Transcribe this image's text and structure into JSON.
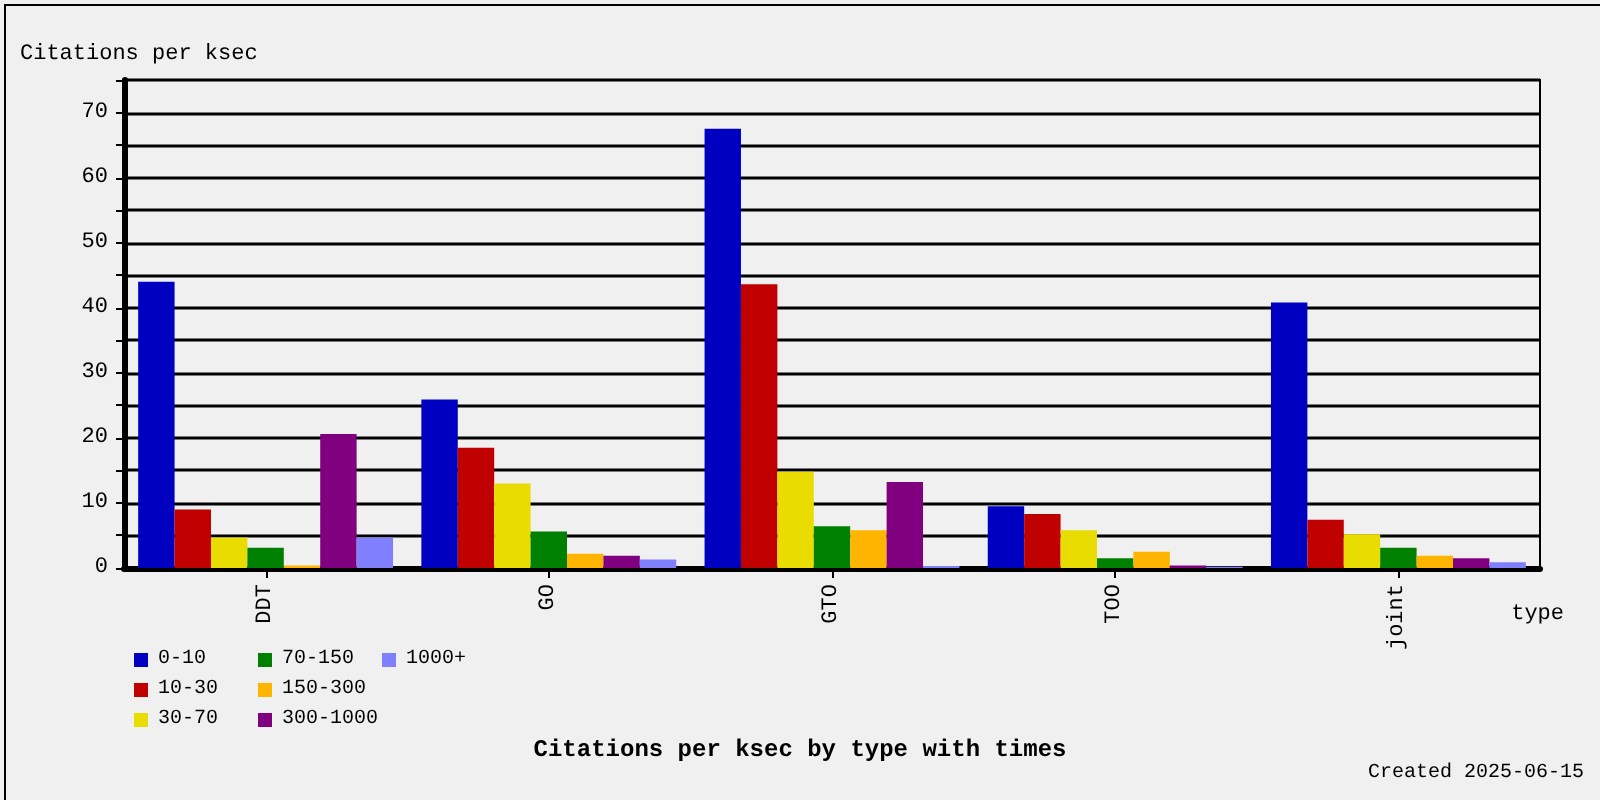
{
  "chart_data": {
    "type": "bar",
    "title": "Citations per ksec by type with times",
    "ylabel": "Citations per ksec",
    "xlabel": "type",
    "annotations": [
      "Created 2025-06-15"
    ],
    "categories": [
      "DDT",
      "GO",
      "GTO",
      "TOO",
      "joint"
    ],
    "series": [
      {
        "name": "0-10",
        "color": "#0000c0",
        "values": [
          44,
          25.9,
          67.5,
          9.5,
          40.8
        ]
      },
      {
        "name": "10-30",
        "color": "#c00000",
        "values": [
          9,
          18.5,
          43.6,
          8.3,
          7.4
        ]
      },
      {
        "name": "30-70",
        "color": "#e8dc00",
        "values": [
          4.7,
          13,
          14.8,
          5.8,
          5.2
        ]
      },
      {
        "name": "70-150",
        "color": "#008000",
        "values": [
          3.1,
          5.6,
          6.4,
          1.5,
          3.1
        ]
      },
      {
        "name": "150-300",
        "color": "#ffb400",
        "values": [
          0.4,
          2.2,
          5.8,
          2.5,
          1.9
        ]
      },
      {
        "name": "300-1000",
        "color": "#800080",
        "values": [
          20.6,
          1.9,
          13.2,
          0.4,
          1.5
        ]
      },
      {
        "name": "1000+",
        "color": "#8080ff",
        "values": [
          4.7,
          1.3,
          0.3,
          0.2,
          0.9
        ]
      }
    ],
    "ylim": [
      0,
      75
    ],
    "yticks": [
      0,
      {
        "value": 5,
        "label": null
      },
      10,
      {
        "value": 15,
        "label": null
      },
      20,
      {
        "value": 25,
        "label": null
      },
      30,
      {
        "value": 35,
        "label": null
      },
      40,
      {
        "value": 45,
        "label": null
      },
      50,
      {
        "value": 55,
        "label": null
      },
      60,
      {
        "value": 65,
        "label": null
      },
      70,
      {
        "value": 75,
        "label": null
      }
    ],
    "grid": "y",
    "legend": "bottom left"
  }
}
